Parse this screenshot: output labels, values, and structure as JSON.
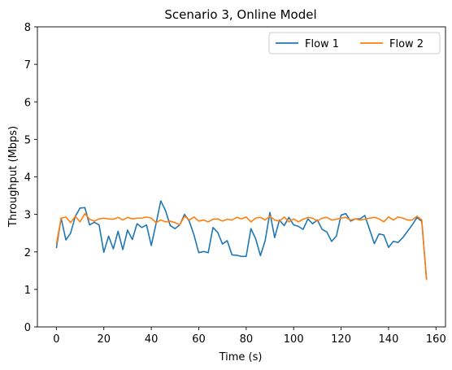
{
  "chart_data": {
    "type": "line",
    "title": "Scenario 3, Online Model",
    "xlabel": "Time (s)",
    "ylabel": "Throughput (Mbps)",
    "xlim": [
      -8,
      164
    ],
    "ylim": [
      0,
      8
    ],
    "xticks": [
      0,
      20,
      40,
      60,
      80,
      100,
      120,
      140,
      160
    ],
    "yticks": [
      0,
      1,
      2,
      3,
      4,
      5,
      6,
      7,
      8
    ],
    "grid": false,
    "legend_position": "top-right",
    "series": [
      {
        "name": "Flow 1",
        "color": "#1f77b4",
        "x": [
          0,
          2,
          4,
          6,
          8,
          10,
          12,
          14,
          16,
          18,
          20,
          22,
          24,
          26,
          28,
          30,
          32,
          34,
          36,
          38,
          40,
          42,
          44,
          46,
          48,
          50,
          52,
          54,
          56,
          58,
          60,
          62,
          64,
          66,
          68,
          70,
          72,
          74,
          76,
          78,
          80,
          82,
          84,
          86,
          88,
          90,
          92,
          94,
          96,
          98,
          100,
          102,
          104,
          106,
          108,
          110,
          112,
          114,
          116,
          118,
          120,
          122,
          124,
          126,
          128,
          130,
          132,
          134,
          136,
          138,
          140,
          142,
          144,
          146,
          148,
          150,
          152,
          154,
          156
        ],
        "y": [
          2.1,
          2.9,
          2.32,
          2.5,
          2.95,
          3.17,
          3.18,
          2.72,
          2.79,
          2.72,
          1.99,
          2.42,
          2.08,
          2.55,
          2.06,
          2.58,
          2.33,
          2.75,
          2.65,
          2.72,
          2.17,
          2.75,
          3.36,
          3.1,
          2.7,
          2.62,
          2.72,
          3.0,
          2.82,
          2.45,
          1.98,
          2.01,
          1.98,
          2.65,
          2.52,
          2.21,
          2.3,
          1.92,
          1.91,
          1.88,
          1.88,
          2.62,
          2.35,
          1.9,
          2.3,
          3.05,
          2.38,
          2.85,
          2.7,
          2.92,
          2.72,
          2.68,
          2.6,
          2.88,
          2.75,
          2.85,
          2.6,
          2.53,
          2.28,
          2.42,
          2.98,
          3.02,
          2.82,
          2.88,
          2.88,
          2.97,
          2.6,
          2.22,
          2.48,
          2.45,
          2.12,
          2.28,
          2.25,
          2.38,
          2.55,
          2.72,
          2.92,
          2.81,
          1.28
        ]
      },
      {
        "name": "Flow 2",
        "color": "#ff7f0e",
        "x": [
          0,
          2,
          4,
          6,
          8,
          10,
          12,
          14,
          16,
          18,
          20,
          22,
          24,
          26,
          28,
          30,
          32,
          34,
          36,
          38,
          40,
          42,
          44,
          46,
          48,
          50,
          52,
          54,
          56,
          58,
          60,
          62,
          64,
          66,
          68,
          70,
          72,
          74,
          76,
          78,
          80,
          82,
          84,
          86,
          88,
          90,
          92,
          94,
          96,
          98,
          100,
          102,
          104,
          106,
          108,
          110,
          112,
          114,
          116,
          118,
          120,
          122,
          124,
          126,
          128,
          130,
          132,
          134,
          136,
          138,
          140,
          142,
          144,
          146,
          148,
          150,
          152,
          154,
          156
        ],
        "y": [
          2.2,
          2.9,
          2.93,
          2.78,
          2.95,
          2.8,
          3.02,
          2.87,
          2.82,
          2.88,
          2.9,
          2.88,
          2.87,
          2.92,
          2.85,
          2.92,
          2.88,
          2.9,
          2.9,
          2.93,
          2.9,
          2.78,
          2.85,
          2.8,
          2.82,
          2.78,
          2.72,
          2.95,
          2.85,
          2.93,
          2.82,
          2.85,
          2.8,
          2.87,
          2.88,
          2.82,
          2.87,
          2.85,
          2.92,
          2.88,
          2.93,
          2.8,
          2.9,
          2.92,
          2.85,
          2.95,
          2.85,
          2.82,
          2.93,
          2.8,
          2.88,
          2.8,
          2.87,
          2.92,
          2.9,
          2.82,
          2.9,
          2.92,
          2.85,
          2.87,
          2.9,
          2.92,
          2.85,
          2.88,
          2.85,
          2.87,
          2.9,
          2.92,
          2.88,
          2.8,
          2.93,
          2.85,
          2.93,
          2.9,
          2.85,
          2.85,
          2.95,
          2.85,
          1.25
        ]
      }
    ]
  }
}
